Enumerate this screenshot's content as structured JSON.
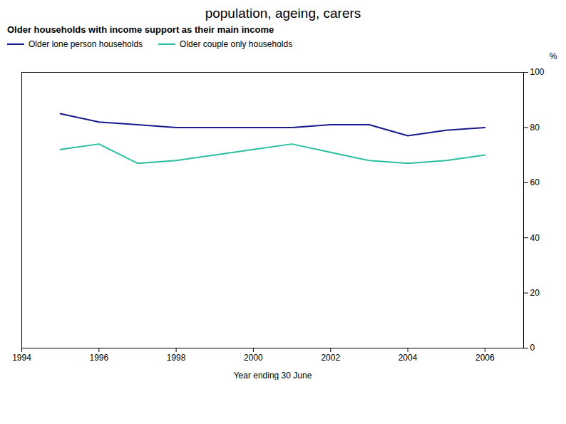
{
  "chart_data": {
    "type": "line",
    "title": "population, ageing, carers",
    "subtitle": "Older households with income support as their main income",
    "xlabel": "Year ending 30 June",
    "ylabel": "%",
    "x": [
      1995,
      1996,
      1997,
      1998,
      1999,
      2000,
      2001,
      2002,
      2003,
      2004,
      2005,
      2006
    ],
    "series": [
      {
        "name": "Older lone person households",
        "color": "#1a1a8c",
        "values": [
          85,
          82,
          81,
          80,
          80,
          80,
          80,
          81,
          81,
          77,
          79,
          80
        ]
      },
      {
        "name": "Older couple only households",
        "color": "#2abf9e",
        "values": [
          72,
          74,
          67,
          68,
          70,
          72,
          74,
          71,
          68,
          67,
          68,
          70
        ]
      }
    ],
    "xlim": [
      1994,
      2007
    ],
    "xticks": [
      1994,
      1996,
      1998,
      2000,
      2002,
      2004,
      2006
    ],
    "ylim": [
      0,
      100
    ],
    "yticks": [
      0,
      20,
      40,
      60,
      80,
      100
    ],
    "grid": false,
    "legend": "upper left"
  }
}
